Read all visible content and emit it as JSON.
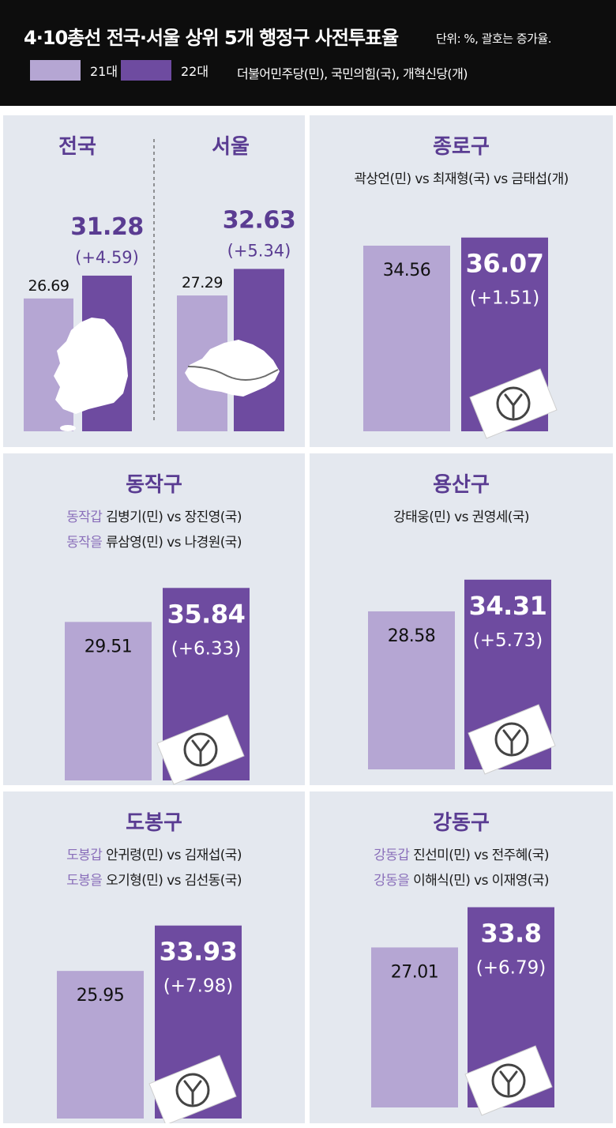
{
  "header": {
    "title": "4·10총선 전국·서울 상위 5개 행정구 사전투표율",
    "unit_note": "단위: %,  괄호는 증가율.",
    "legend": [
      {
        "label": "21대",
        "color": "#b5a6d3"
      },
      {
        "label": "22대",
        "color": "#6e4ba0"
      }
    ],
    "party_note": "더불어민주당(민), 국민의힘(국), 개혁신당(개)"
  },
  "colors": {
    "bar_21": "#b5a6d3",
    "bar_22": "#6e4ba0",
    "value_22_text": "#5a3c92",
    "panel_title": "#5a3c92",
    "panel_bg": "#e4e8ef",
    "district_label": "#8a6fba"
  },
  "chart_data": [
    {
      "type": "bar",
      "panel": "national",
      "title": "전국",
      "categories": [
        "21대",
        "22대"
      ],
      "values": [
        26.69,
        31.28
      ],
      "value_labels": [
        "26.69",
        "31.28"
      ],
      "change_label": "(+4.59)",
      "icon": "korea-map-icon"
    },
    {
      "type": "bar",
      "panel": "seoul",
      "title": "서울",
      "categories": [
        "21대",
        "22대"
      ],
      "values": [
        27.29,
        32.63
      ],
      "value_labels": [
        "27.29",
        "32.63"
      ],
      "change_label": "(+5.34)",
      "icon": "seoul-map-icon"
    },
    {
      "type": "bar",
      "panel": "jongno",
      "title": "종로구",
      "candidates": [
        {
          "district": "",
          "text": "곽상언(민) vs 최재형(국) vs 금태섭(개)"
        }
      ],
      "categories": [
        "21대",
        "22대"
      ],
      "values": [
        34.56,
        36.07
      ],
      "value_labels": [
        "34.56",
        "36.07"
      ],
      "change_label": "(+1.51)",
      "icon": "ballot-icon"
    },
    {
      "type": "bar",
      "panel": "dongjak",
      "title": "동작구",
      "candidates": [
        {
          "district": "동작갑",
          "text": "김병기(민) vs 장진영(국)"
        },
        {
          "district": "동작을",
          "text": "류삼영(민) vs 나경원(국)"
        }
      ],
      "categories": [
        "21대",
        "22대"
      ],
      "values": [
        29.51,
        35.84
      ],
      "value_labels": [
        "29.51",
        "35.84"
      ],
      "change_label": "(+6.33)",
      "icon": "ballot-icon"
    },
    {
      "type": "bar",
      "panel": "yongsan",
      "title": "용산구",
      "candidates": [
        {
          "district": "",
          "text": "강태웅(민) vs 권영세(국)"
        }
      ],
      "categories": [
        "21대",
        "22대"
      ],
      "values": [
        28.58,
        34.31
      ],
      "value_labels": [
        "28.58",
        "34.31"
      ],
      "change_label": "(+5.73)",
      "icon": "ballot-icon"
    },
    {
      "type": "bar",
      "panel": "dobong",
      "title": "도봉구",
      "candidates": [
        {
          "district": "도봉갑",
          "text": "안귀령(민) vs 김재섭(국)"
        },
        {
          "district": "도봉을",
          "text": "오기형(민) vs 김선동(국)"
        }
      ],
      "categories": [
        "21대",
        "22대"
      ],
      "values": [
        25.95,
        33.93
      ],
      "value_labels": [
        "25.95",
        "33.93"
      ],
      "change_label": "(+7.98)",
      "icon": "ballot-icon"
    },
    {
      "type": "bar",
      "panel": "gangdong",
      "title": "강동구",
      "candidates": [
        {
          "district": "강동갑",
          "text": "진선미(민) vs 전주혜(국)"
        },
        {
          "district": "강동을",
          "text": "이해식(민) vs 이재영(국)"
        }
      ],
      "categories": [
        "21대",
        "22대"
      ],
      "values": [
        27.01,
        33.8
      ],
      "value_labels": [
        "27.01",
        "33.8"
      ],
      "change_label": "(+6.79)",
      "icon": "ballot-icon"
    }
  ]
}
